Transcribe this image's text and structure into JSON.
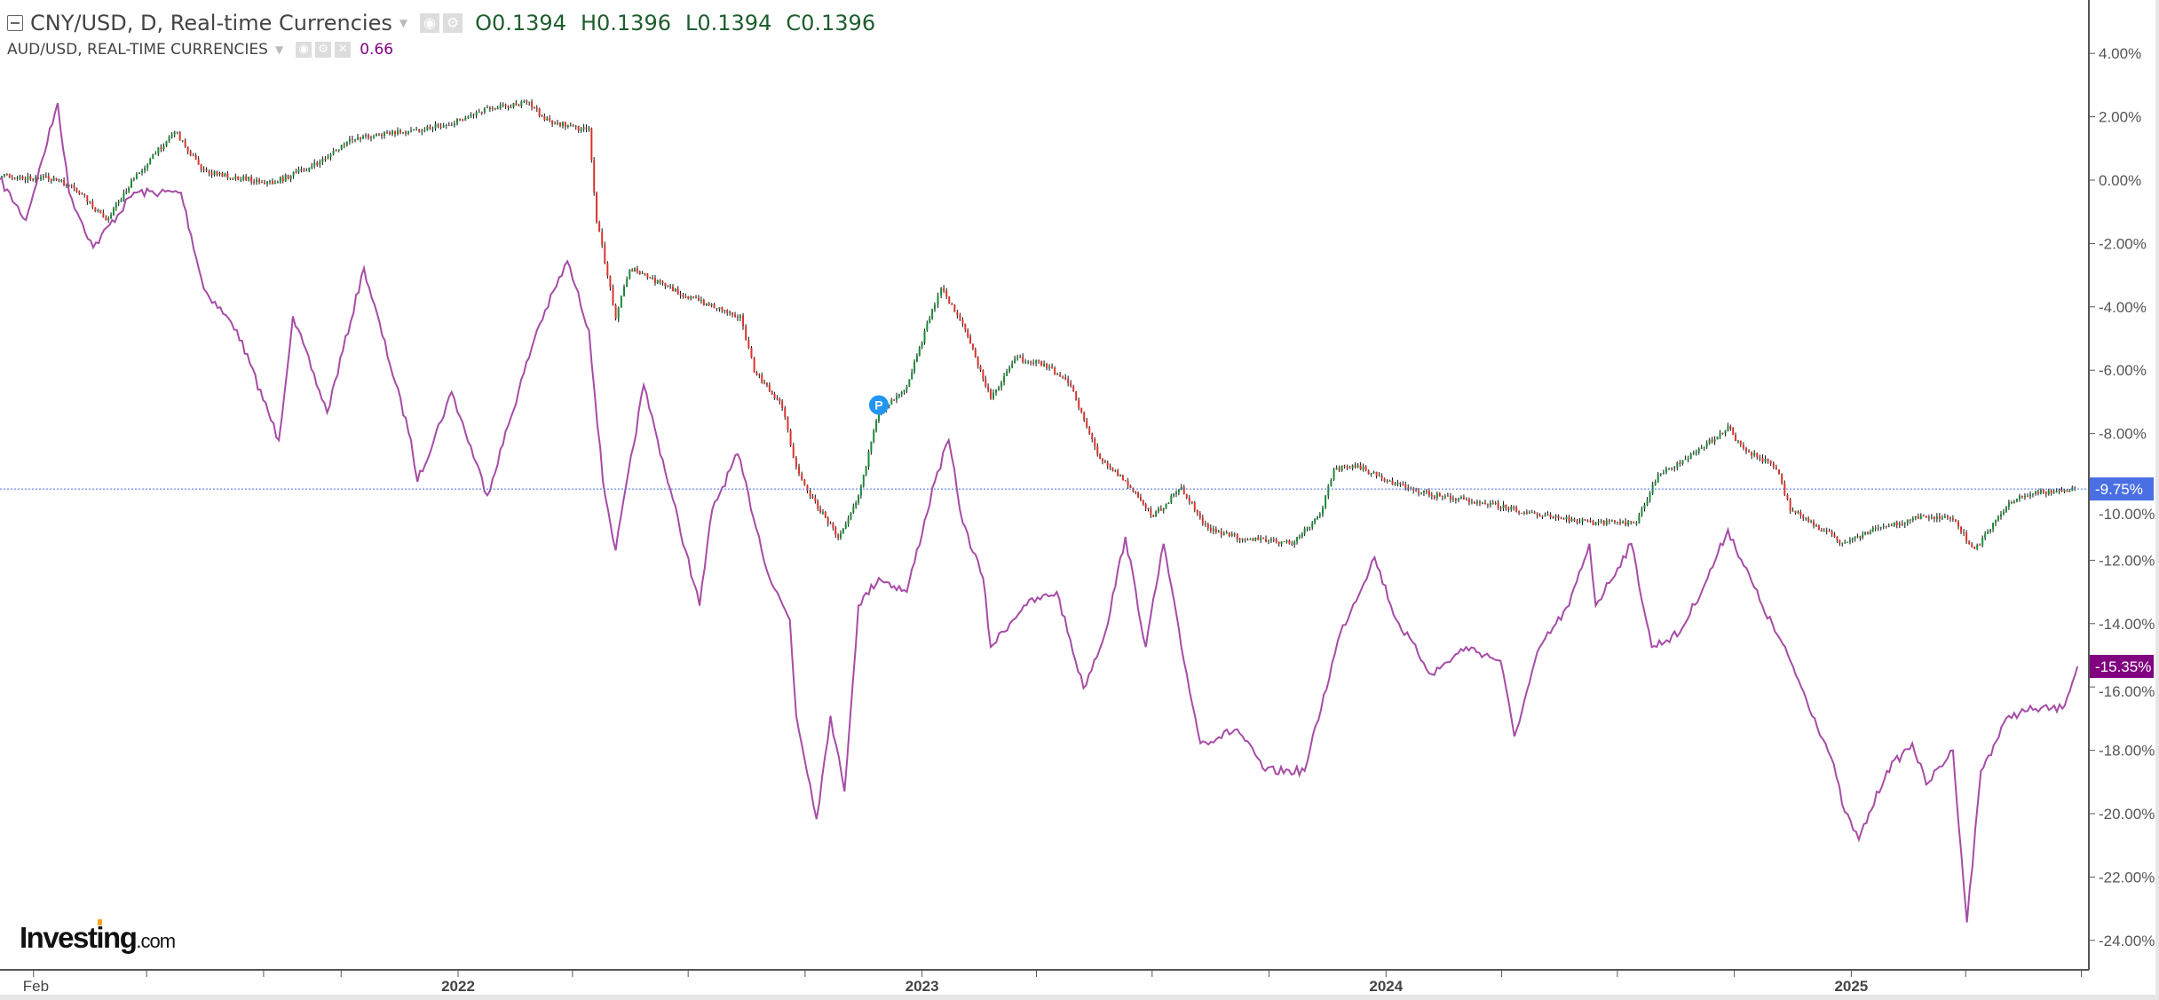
{
  "legend": {
    "main": {
      "title": "CNY/USD, D, Real-time Currencies",
      "o": "O0.1394",
      "h": "H0.1396",
      "l": "L0.1394",
      "c": "C0.1396"
    },
    "compare": {
      "title": "AUD/USD, REAL-TIME CURRENCIES",
      "value": "0.66",
      "color": "#800080"
    }
  },
  "logo": {
    "text": "Investing",
    "suffix": ".com"
  },
  "marker": {
    "label": "P",
    "color": "#2196f3"
  },
  "chart_data": {
    "type": "line",
    "title": "",
    "xlabel": "",
    "ylabel": "",
    "x_tick_labels": [
      "Feb",
      "2022",
      "2023",
      "2024",
      "2025"
    ],
    "y_tick_labels": [
      "4.00%",
      "2.00%",
      "0.00%",
      "-2.00%",
      "-4.00%",
      "-6.00%",
      "-8.00%",
      "-10.00%",
      "-12.00%",
      "-14.00%",
      "-16.00%",
      "-18.00%",
      "-20.00%",
      "-22.00%",
      "-24.00%"
    ],
    "y_ticks": [
      4,
      2,
      0,
      -2,
      -4,
      -6,
      -8,
      -10,
      -12,
      -14,
      -16,
      -18,
      -20,
      -22,
      -24
    ],
    "ylim": [
      -25.5,
      5.7
    ],
    "xlim": [
      "2021-01-01",
      "2025-07-15"
    ],
    "grid": false,
    "last_value_labels": [
      {
        "text": "-9.75%",
        "value": -9.75,
        "color": "#4a6fe3"
      },
      {
        "text": "-15.35%",
        "value": -15.35,
        "color": "#800080"
      }
    ],
    "series": [
      {
        "name": "CNY/USD",
        "style": "candlestick",
        "up_color": "#1b8a3a",
        "down_color": "#d9342b",
        "points": [
          [
            "2021-01-05",
            0.13
          ],
          [
            "2021-02-17",
            0.04
          ],
          [
            "2021-03-09",
            -0.39
          ],
          [
            "2021-03-30",
            -1.26
          ],
          [
            "2021-04-21",
            0.04
          ],
          [
            "2021-05-23",
            1.56
          ],
          [
            "2021-06-15",
            0.26
          ],
          [
            "2021-08-08",
            -0.09
          ],
          [
            "2021-09-10",
            0.47
          ],
          [
            "2021-10-12",
            1.34
          ],
          [
            "2021-11-25",
            1.56
          ],
          [
            "2021-12-27",
            1.78
          ],
          [
            "2022-01-24",
            2.3
          ],
          [
            "2022-02-26",
            2.43
          ],
          [
            "2022-03-12",
            1.87
          ],
          [
            "2022-04-14",
            1.56
          ],
          [
            "2022-04-20",
            -1.26
          ],
          [
            "2022-05-05",
            -4.3
          ],
          [
            "2022-05-16",
            -2.78
          ],
          [
            "2022-06-07",
            -3.22
          ],
          [
            "2022-06-29",
            -3.65
          ],
          [
            "2022-08-11",
            -4.3
          ],
          [
            "2022-08-22",
            -6.04
          ],
          [
            "2022-09-13",
            -7.13
          ],
          [
            "2022-09-24",
            -9.08
          ],
          [
            "2022-10-05",
            -9.95
          ],
          [
            "2022-10-27",
            -11.26
          ],
          [
            "2022-11-12",
            -9.95
          ],
          [
            "2022-11-28",
            -7.34
          ],
          [
            "2022-12-20",
            -6.47
          ],
          [
            "2023-01-11",
            -3.87
          ],
          [
            "2023-01-16",
            -3.43
          ],
          [
            "2023-02-02",
            -4.52
          ],
          [
            "2023-02-24",
            -6.91
          ],
          [
            "2023-03-15",
            -5.6
          ],
          [
            "2023-04-07",
            -5.82
          ],
          [
            "2023-04-28",
            -6.47
          ],
          [
            "2023-05-19",
            -8.65
          ],
          [
            "2023-06-10",
            -9.52
          ],
          [
            "2023-07-02",
            -10.6
          ],
          [
            "2023-07-24",
            -9.73
          ],
          [
            "2023-08-14",
            -11.04
          ],
          [
            "2023-09-06",
            -11.26
          ],
          [
            "2023-10-19",
            -11.48
          ],
          [
            "2023-11-10",
            -10.6
          ],
          [
            "2023-11-21",
            -9.08
          ],
          [
            "2023-12-12",
            -9.08
          ],
          [
            "2024-01-04",
            -9.52
          ],
          [
            "2024-02-06",
            -9.95
          ],
          [
            "2024-03-19",
            -10.17
          ],
          [
            "2024-05-01",
            -10.6
          ],
          [
            "2024-06-14",
            -10.82
          ],
          [
            "2024-07-16",
            -10.82
          ],
          [
            "2024-08-02",
            -9.3
          ],
          [
            "2024-08-30",
            -8.65
          ],
          [
            "2024-09-26",
            -7.78
          ],
          [
            "2024-10-06",
            -8.43
          ],
          [
            "2024-11-03",
            -9.08
          ],
          [
            "2024-11-14",
            -10.39
          ],
          [
            "2024-12-27",
            -11.48
          ],
          [
            "2025-01-18",
            -11.04
          ],
          [
            "2025-03-01",
            -10.6
          ],
          [
            "2025-03-22",
            -10.73
          ],
          [
            "2025-04-08",
            -11.69
          ],
          [
            "2025-05-05",
            -10.17
          ],
          [
            "2025-05-26",
            -9.86
          ],
          [
            "2025-06-28",
            -9.75
          ]
        ]
      },
      {
        "name": "AUD/USD",
        "style": "line",
        "color": "#a64ca6",
        "points": [
          [
            "2021-01-05",
            0.04
          ],
          [
            "2021-01-26",
            -1.26
          ],
          [
            "2021-02-20",
            2.43
          ],
          [
            "2021-03-01",
            -0.39
          ],
          [
            "2021-03-20",
            -2.13
          ],
          [
            "2021-04-21",
            -0.39
          ],
          [
            "2021-05-28",
            -0.39
          ],
          [
            "2021-06-15",
            -3.43
          ],
          [
            "2021-07-11",
            -4.74
          ],
          [
            "2021-08-13",
            -8.21
          ],
          [
            "2021-08-24",
            -4.3
          ],
          [
            "2021-09-20",
            -7.34
          ],
          [
            "2021-10-19",
            -2.78
          ],
          [
            "2021-11-25",
            -8.21
          ],
          [
            "2021-11-30",
            -9.52
          ],
          [
            "2021-12-27",
            -6.69
          ],
          [
            "2022-01-24",
            -9.95
          ],
          [
            "2022-03-04",
            -4.74
          ],
          [
            "2022-03-28",
            -2.56
          ],
          [
            "2022-04-14",
            -4.74
          ],
          [
            "2022-04-25",
            -9.52
          ],
          [
            "2022-05-05",
            -11.69
          ],
          [
            "2022-05-27",
            -6.47
          ],
          [
            "2022-06-07",
            -8.21
          ],
          [
            "2022-06-29",
            -11.69
          ],
          [
            "2022-07-10",
            -13.43
          ],
          [
            "2022-07-20",
            -10.39
          ],
          [
            "2022-08-09",
            -8.65
          ],
          [
            "2022-09-03",
            -12.56
          ],
          [
            "2022-09-19",
            -13.87
          ],
          [
            "2022-09-24",
            -16.91
          ],
          [
            "2022-10-05",
            -19.08
          ],
          [
            "2022-10-10",
            -20.17
          ],
          [
            "2022-10-21",
            -16.91
          ],
          [
            "2022-11-01",
            -19.3
          ],
          [
            "2022-11-12",
            -13.43
          ],
          [
            "2022-11-28",
            -12.56
          ],
          [
            "2022-12-20",
            -13.0
          ],
          [
            "2023-01-11",
            -9.52
          ],
          [
            "2023-01-22",
            -8.21
          ],
          [
            "2023-02-02",
            -10.82
          ],
          [
            "2023-02-18",
            -12.56
          ],
          [
            "2023-02-24",
            -14.74
          ],
          [
            "2023-03-22",
            -13.43
          ],
          [
            "2023-04-17",
            -13.0
          ],
          [
            "2023-05-08",
            -16.04
          ],
          [
            "2023-05-25",
            -14.3
          ],
          [
            "2023-06-10",
            -11.26
          ],
          [
            "2023-06-26",
            -14.74
          ],
          [
            "2023-07-10",
            -11.48
          ],
          [
            "2023-07-24",
            -14.74
          ],
          [
            "2023-08-08",
            -17.78
          ],
          [
            "2023-09-06",
            -17.34
          ],
          [
            "2023-09-28",
            -18.65
          ],
          [
            "2023-10-29",
            -18.65
          ],
          [
            "2023-11-26",
            -14.3
          ],
          [
            "2023-12-23",
            -11.91
          ],
          [
            "2024-01-09",
            -13.87
          ],
          [
            "2024-02-06",
            -15.6
          ],
          [
            "2024-03-04",
            -14.74
          ],
          [
            "2024-03-31",
            -15.17
          ],
          [
            "2024-04-11",
            -17.56
          ],
          [
            "2024-05-01",
            -14.74
          ],
          [
            "2024-05-24",
            -13.43
          ],
          [
            "2024-06-09",
            -11.48
          ],
          [
            "2024-06-14",
            -13.43
          ],
          [
            "2024-07-12",
            -11.48
          ],
          [
            "2024-07-28",
            -14.74
          ],
          [
            "2024-08-19",
            -14.3
          ],
          [
            "2024-09-10",
            -12.56
          ],
          [
            "2024-09-26",
            -11.04
          ],
          [
            "2024-10-23",
            -13.43
          ],
          [
            "2024-11-14",
            -15.17
          ],
          [
            "2024-12-16",
            -18.21
          ],
          [
            "2024-12-27",
            -19.95
          ],
          [
            "2025-01-07",
            -20.82
          ],
          [
            "2025-01-29",
            -18.65
          ],
          [
            "2025-02-18",
            -17.78
          ],
          [
            "2025-03-01",
            -19.08
          ],
          [
            "2025-03-22",
            -18.0
          ],
          [
            "2025-04-02",
            -23.43
          ],
          [
            "2025-04-13",
            -18.65
          ],
          [
            "2025-05-05",
            -16.91
          ],
          [
            "2025-05-26",
            -16.69
          ],
          [
            "2025-06-16",
            -16.69
          ],
          [
            "2025-06-28",
            -15.35
          ]
        ]
      }
    ],
    "annotations": [
      {
        "type": "marker",
        "label": "P",
        "date": "2022-11-28",
        "value": -7.1
      }
    ]
  }
}
